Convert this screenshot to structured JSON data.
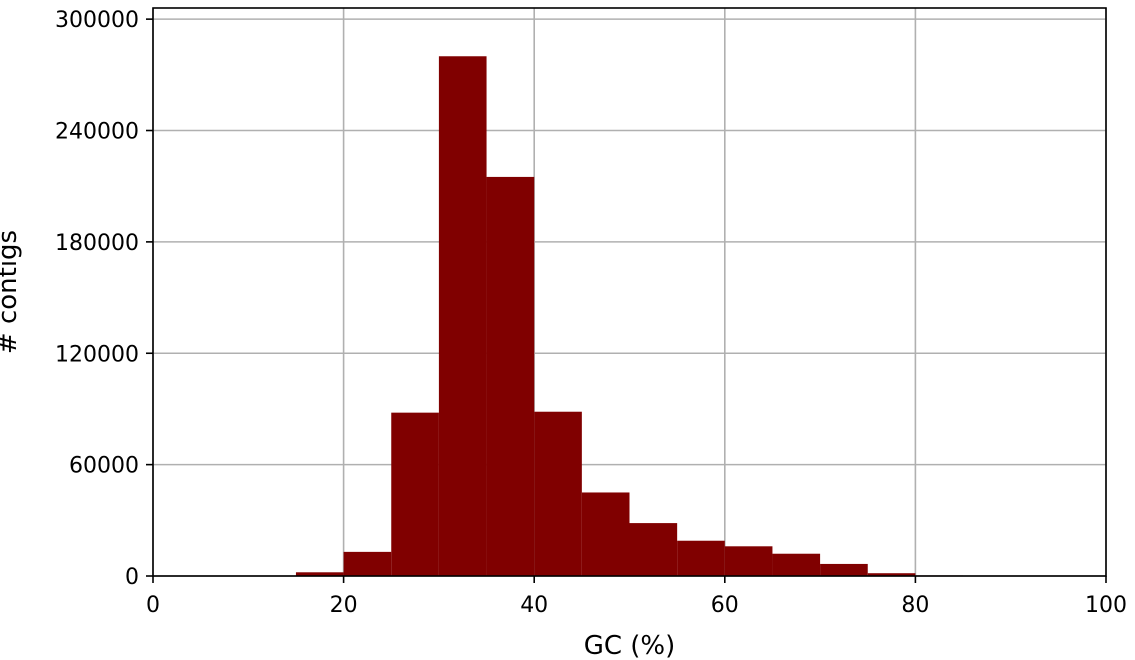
{
  "chart_data": {
    "type": "bar",
    "title": "",
    "xlabel": "GC (%)",
    "ylabel": "# contigs",
    "xlim": [
      0,
      100
    ],
    "ylim": [
      0,
      306000
    ],
    "xticks": [
      0,
      20,
      40,
      60,
      80,
      100
    ],
    "xtick_labels": [
      "0",
      "20",
      "40",
      "60",
      "80",
      "100"
    ],
    "yticks": [
      0,
      60000,
      120000,
      180000,
      240000,
      300000
    ],
    "ytick_labels": [
      "0",
      "60000",
      "120000",
      "180000",
      "240000",
      "300000"
    ],
    "grid": true,
    "bar_color": "#800000",
    "bins": [
      {
        "x0": 15,
        "x1": 20,
        "value": 2000
      },
      {
        "x0": 20,
        "x1": 25,
        "value": 13000
      },
      {
        "x0": 25,
        "x1": 30,
        "value": 88000
      },
      {
        "x0": 30,
        "x1": 35,
        "value": 280000
      },
      {
        "x0": 35,
        "x1": 40,
        "value": 215000
      },
      {
        "x0": 40,
        "x1": 45,
        "value": 88500
      },
      {
        "x0": 45,
        "x1": 50,
        "value": 45000
      },
      {
        "x0": 50,
        "x1": 55,
        "value": 28500
      },
      {
        "x0": 55,
        "x1": 60,
        "value": 19000
      },
      {
        "x0": 60,
        "x1": 65,
        "value": 16000
      },
      {
        "x0": 65,
        "x1": 70,
        "value": 12000
      },
      {
        "x0": 70,
        "x1": 75,
        "value": 6500
      },
      {
        "x0": 75,
        "x1": 80,
        "value": 1500
      },
      {
        "x0": 80,
        "x1": 85,
        "value": 300
      },
      {
        "x0": 85,
        "x1": 90,
        "value": 100
      }
    ]
  }
}
